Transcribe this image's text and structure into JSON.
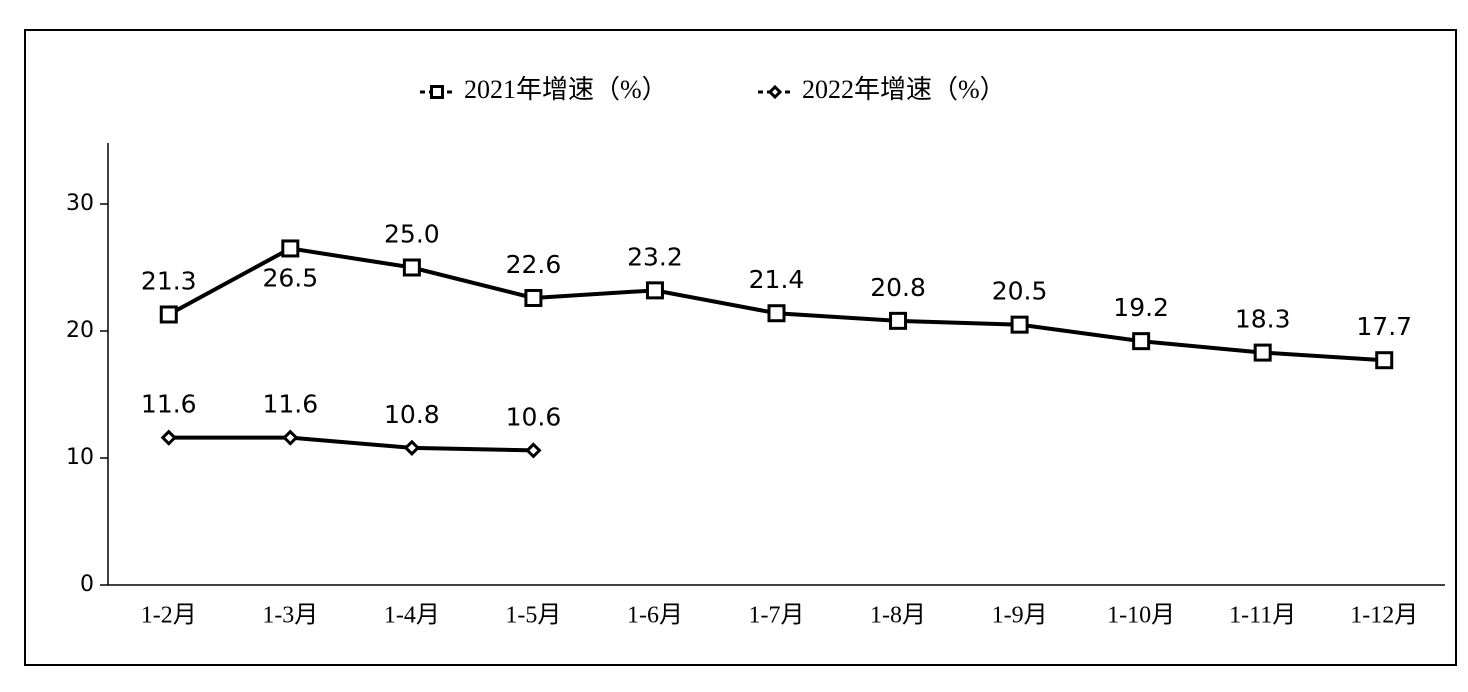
{
  "chart_data": {
    "type": "line",
    "categories": [
      "1-2月",
      "1-3月",
      "1-4月",
      "1-5月",
      "1-6月",
      "1-7月",
      "1-8月",
      "1-9月",
      "1-10月",
      "1-11月",
      "1-12月"
    ],
    "series": [
      {
        "name": "2021年增速（%）",
        "color": "#000000",
        "marker": "square",
        "values": [
          21.3,
          26.5,
          25.0,
          22.6,
          23.2,
          21.4,
          20.8,
          20.5,
          19.2,
          18.3,
          17.7
        ],
        "value_labels": [
          "21.3",
          "26.5",
          "25.0",
          "22.6",
          "23.2",
          "21.4",
          "20.8",
          "20.5",
          "19.2",
          "18.3",
          "17.7"
        ]
      },
      {
        "name": "2022年增速（%）",
        "color": "#000000",
        "marker": "diamond",
        "values": [
          11.6,
          11.6,
          10.8,
          10.6,
          null,
          null,
          null,
          null,
          null,
          null,
          null
        ],
        "value_labels": [
          "11.6",
          "11.6",
          "10.8",
          "10.6",
          null,
          null,
          null,
          null,
          null,
          null,
          null
        ]
      }
    ],
    "ylim": [
      0,
      35
    ],
    "yticks": [
      0,
      10,
      20,
      30
    ],
    "grid": false,
    "legend": "top"
  }
}
